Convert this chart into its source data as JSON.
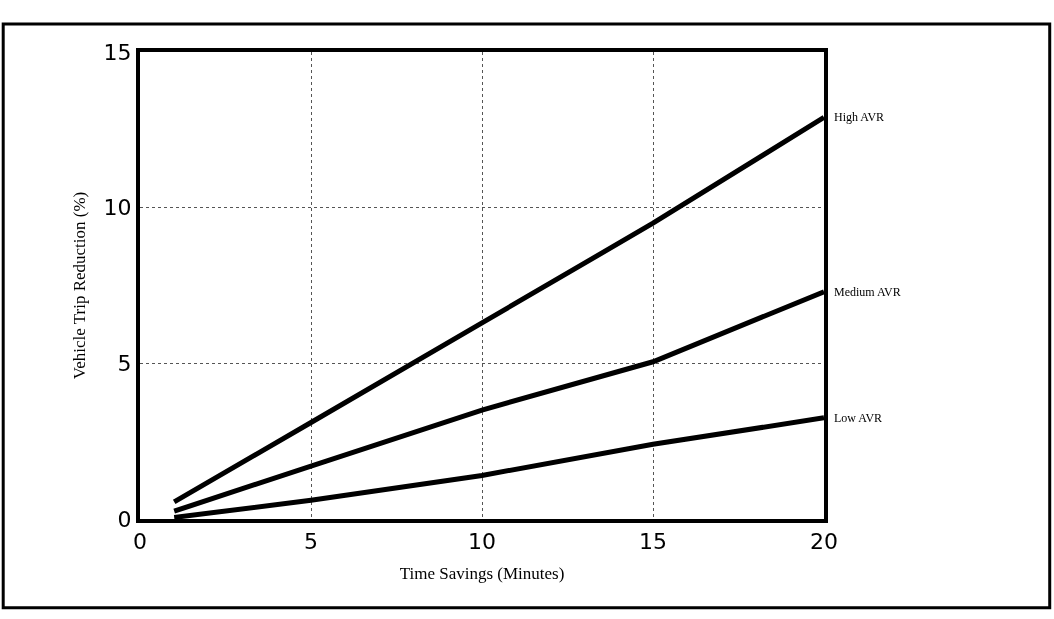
{
  "chart_data": {
    "type": "line",
    "xlabel": "Time Savings (Minutes)",
    "ylabel": "Vehicle Trip Reduction (%)",
    "xlim": [
      0,
      20
    ],
    "xticks": [
      0,
      5,
      10,
      15,
      20
    ],
    "ylim": [
      0,
      15
    ],
    "yticks": [
      0,
      5,
      10,
      15
    ],
    "grid": true,
    "line_style": "solid",
    "series": [
      {
        "name": "High AVR",
        "color": "#000000",
        "x": [
          1,
          5,
          10,
          15,
          20
        ],
        "values": [
          0.55,
          3.1,
          6.3,
          9.5,
          12.9
        ]
      },
      {
        "name": "Medium AVR",
        "color": "#000000",
        "x": [
          1,
          5,
          10,
          15,
          20
        ],
        "values": [
          0.25,
          1.7,
          3.5,
          5.05,
          7.3
        ]
      },
      {
        "name": "Low AVR",
        "color": "#000000",
        "x": [
          1,
          5,
          10,
          15,
          20
        ],
        "values": [
          0.05,
          0.6,
          1.4,
          2.4,
          3.25
        ]
      }
    ]
  }
}
